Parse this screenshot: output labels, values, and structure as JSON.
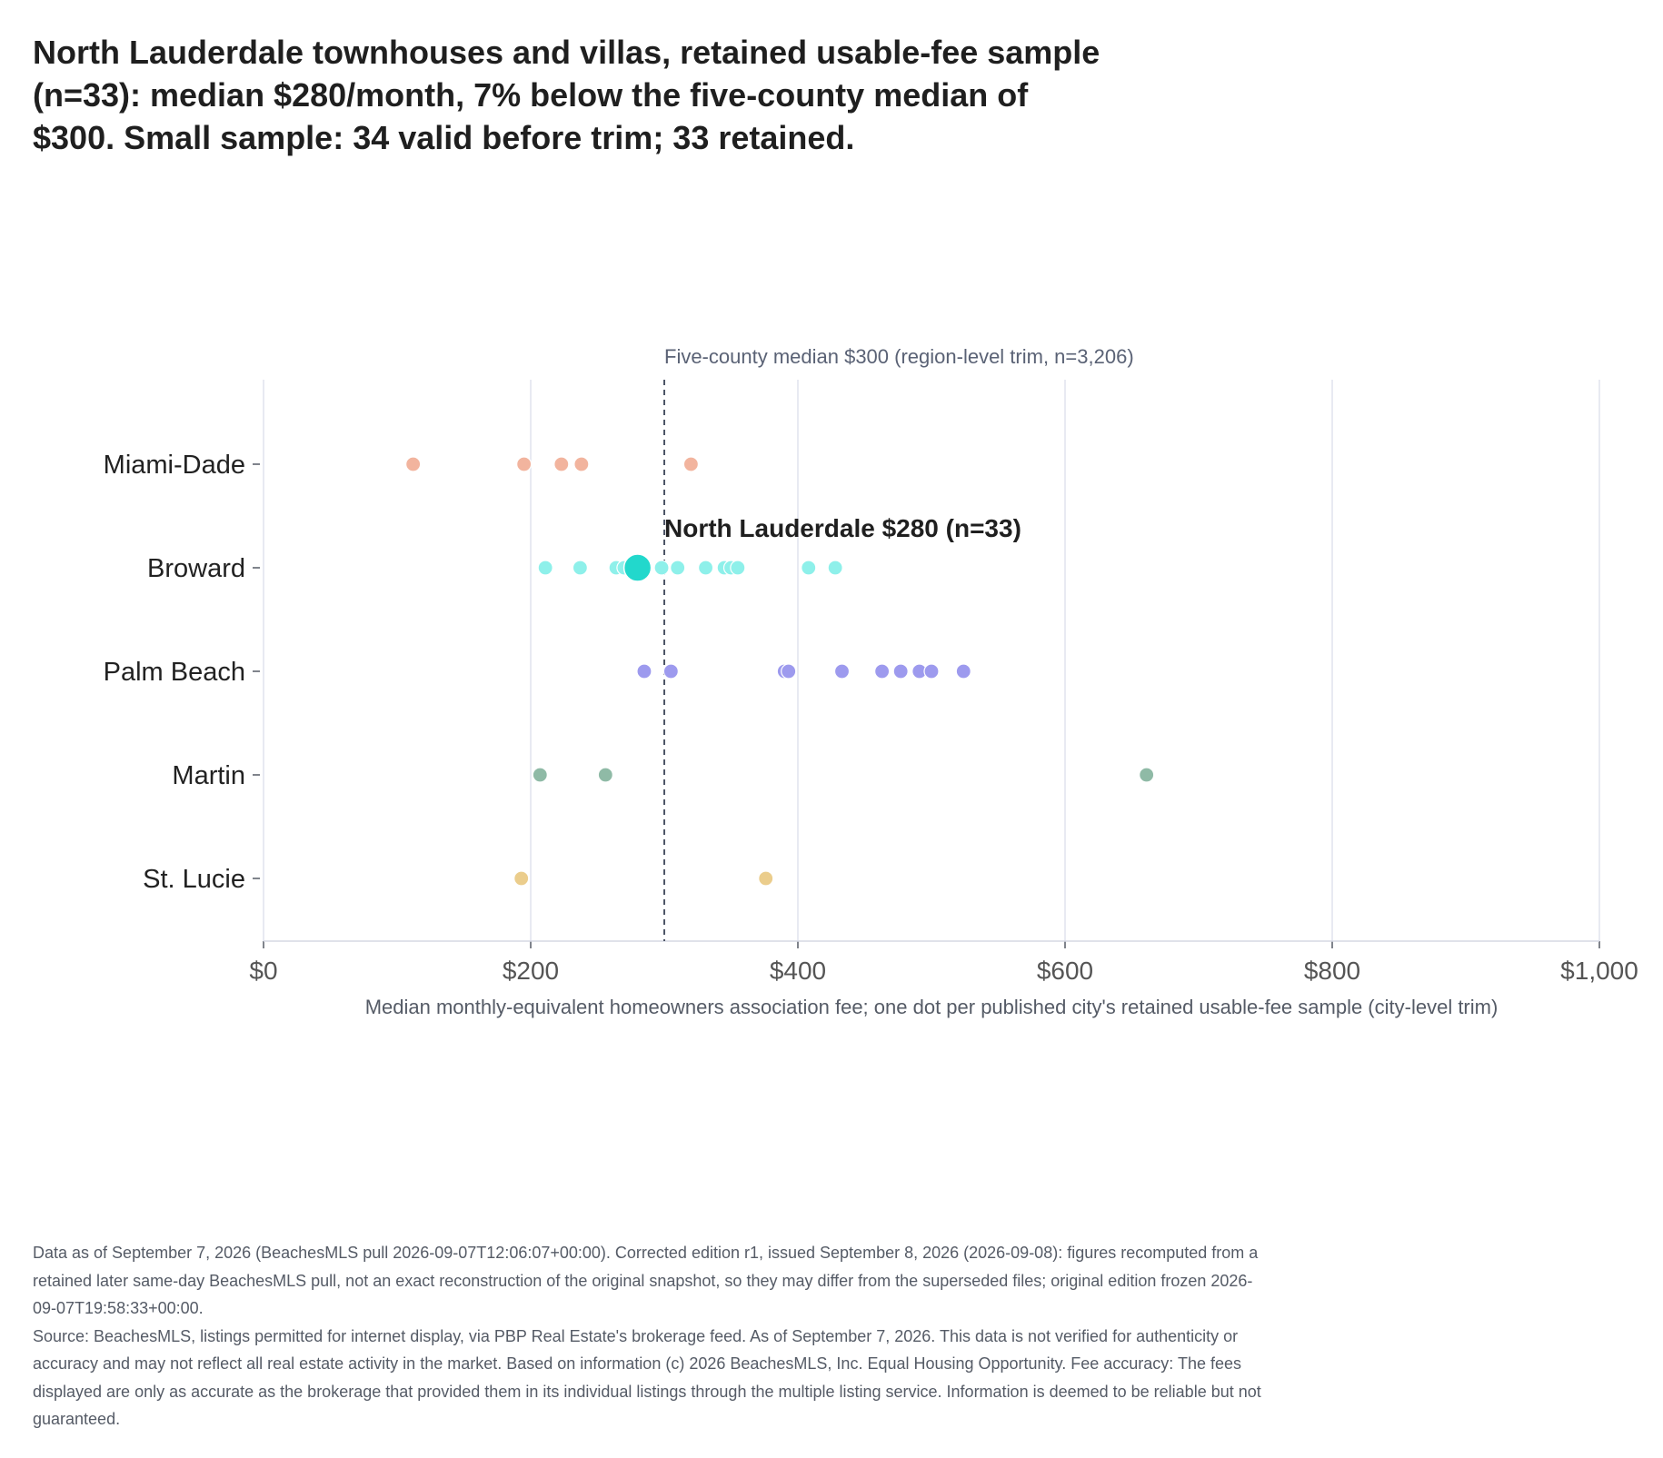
{
  "title_lines": [
    "North Lauderdale townhouses and villas, retained usable-fee sample",
    "(n=33): median $280/month, 7% below the five-county median of",
    "$300. Small sample: 34 valid before trim; 33 retained."
  ],
  "chart_data": {
    "type": "scatter",
    "xlabel": "Median monthly-equivalent homeowners association fee; one dot per published city's retained usable-fee sample (city-level trim)",
    "ylabel": "",
    "xlim": [
      0,
      1000
    ],
    "x_ticks": [
      0,
      200,
      400,
      600,
      800,
      1000
    ],
    "x_tick_labels": [
      "$0",
      "$200",
      "$400",
      "$600",
      "$800",
      "$1,000"
    ],
    "grid": "vertical",
    "categories": [
      "Miami-Dade",
      "Broward",
      "Palm Beach",
      "Martin",
      "St. Lucie"
    ],
    "series": [
      {
        "category": "Miami-Dade",
        "color": "#f2b49e",
        "values": [
          112,
          195,
          223,
          238,
          320
        ]
      },
      {
        "category": "Broward",
        "color": "#8ef0ea",
        "values": [
          211,
          237,
          264,
          270,
          298,
          310,
          331,
          345,
          350,
          355,
          408,
          428
        ]
      },
      {
        "category": "Palm Beach",
        "color": "#9d9aee",
        "values": [
          285,
          305,
          390,
          393,
          433,
          463,
          477,
          491,
          500,
          524
        ]
      },
      {
        "category": "Martin",
        "color": "#8fbaa6",
        "values": [
          207,
          256,
          661
        ]
      },
      {
        "category": "St. Lucie",
        "color": "#ebcd8c",
        "values": [
          193,
          376
        ]
      }
    ],
    "highlight": {
      "category": "Broward",
      "value": 280,
      "color": "#22d8cc",
      "label": "North Lauderdale $280 (n=33)"
    },
    "reference_line": {
      "value": 300,
      "color": "#4d5566",
      "label": "Five-county median $300 (region-level trim, n=3,206)"
    }
  },
  "footer": {
    "data_note": "Data as of September 7, 2026 (BeachesMLS pull 2026-09-07T12:06:07+00:00). Corrected edition r1, issued September 8, 2026 (2026-09-08): figures recomputed from a retained later same-day BeachesMLS pull, not an exact reconstruction of the original snapshot, so they may differ from the superseded files; original edition frozen 2026-09-07T19:58:33+00:00.",
    "source_note": "Source: BeachesMLS, listings permitted for internet display, via PBP Real Estate's brokerage feed. As of September 7, 2026. This data is not verified for authenticity or accuracy and may not reflect all real estate activity in the market. Based on information (c) 2026 BeachesMLS, Inc. Equal Housing Opportunity. Fee accuracy: The fees displayed are only as accurate as the brokerage that provided them in its individual listings through the multiple listing service. Information is deemed to be reliable but not guaranteed."
  }
}
